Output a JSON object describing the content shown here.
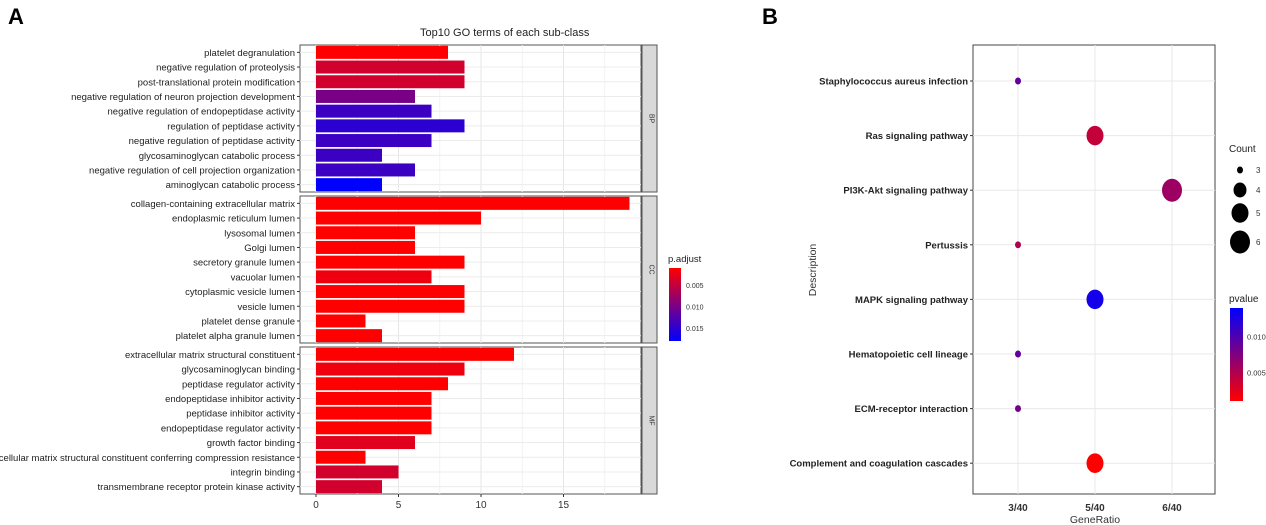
{
  "panel_labels": {
    "a": "A",
    "b": "B"
  },
  "chart_data": [
    {
      "type": "bar",
      "orientation": "horizontal",
      "title": "Top10 GO terms of each sub-class",
      "xlim": [
        0,
        19.5
      ],
      "x_ticks": [
        "0",
        "5",
        "10",
        "15"
      ],
      "grid": true,
      "color_legend": {
        "title": "p.adjust",
        "ticks": [
          "0.005",
          "0.010",
          "0.015"
        ],
        "low_color": "#ff0000",
        "high_color": "#0000ff",
        "range": [
          0.001,
          0.018
        ]
      },
      "facets": [
        {
          "strip": "BP",
          "categories": [
            "platelet degranulation",
            "negative regulation of proteolysis",
            "post-translational protein modification",
            "negative regulation of neuron projection development",
            "negative regulation of endopeptidase activity",
            "regulation of peptidase activity",
            "negative regulation of peptidase activity",
            "glycosaminoglycan catabolic process",
            "negative regulation of cell projection organization",
            "aminoglycan catabolic process"
          ],
          "values": [
            8,
            9,
            9,
            6,
            7,
            9,
            7,
            4,
            6,
            4
          ],
          "p_adjust": [
            0.001,
            0.004,
            0.004,
            0.01,
            0.014,
            0.015,
            0.014,
            0.014,
            0.014,
            0.018
          ]
        },
        {
          "strip": "CC",
          "categories": [
            "collagen-containing extracellular matrix",
            "endoplasmic reticulum lumen",
            "lysosomal lumen",
            "Golgi lumen",
            "secretory granule lumen",
            "vacuolar lumen",
            "cytoplasmic vesicle lumen",
            "vesicle lumen",
            "platelet dense granule",
            "platelet alpha granule lumen"
          ],
          "values": [
            19,
            10,
            6,
            6,
            9,
            7,
            9,
            9,
            3,
            4
          ],
          "p_adjust": [
            0.001,
            0.001,
            0.001,
            0.001,
            0.001,
            0.002,
            0.001,
            0.001,
            0.001,
            0.001
          ]
        },
        {
          "strip": "MF",
          "categories": [
            "extracellular matrix structural constituent",
            "glycosaminoglycan binding",
            "peptidase regulator activity",
            "endopeptidase inhibitor activity",
            "peptidase inhibitor activity",
            "endopeptidase regulator activity",
            "growth factor binding",
            "extracellular matrix structural constituent conferring compression resistance",
            "integrin binding",
            "transmembrane receptor protein kinase activity"
          ],
          "values": [
            12,
            9,
            8,
            7,
            7,
            7,
            6,
            3,
            5,
            4
          ],
          "p_adjust": [
            0.001,
            0.002,
            0.001,
            0.001,
            0.001,
            0.001,
            0.003,
            0.001,
            0.004,
            0.004
          ]
        }
      ]
    },
    {
      "type": "scatter",
      "xlabel": "GeneRatio",
      "ylabel": "Description",
      "x_categories": [
        "3/40",
        "5/40",
        "6/40"
      ],
      "grid": true,
      "categories": [
        "Staphylococcus aureus infection",
        "Ras signaling pathway",
        "PI3K-Akt signaling pathway",
        "Pertussis",
        "MAPK signaling pathway",
        "Hematopoietic cell lineage",
        "ECM-receptor interaction",
        "Complement and coagulation cascades"
      ],
      "x": [
        "3/40",
        "5/40",
        "6/40",
        "3/40",
        "5/40",
        "3/40",
        "3/40",
        "5/40"
      ],
      "count": [
        3,
        5,
        6,
        3,
        5,
        3,
        3,
        5
      ],
      "pvalue": [
        0.009,
        0.004,
        0.006,
        0.005,
        0.013,
        0.009,
        0.008,
        0.001
      ],
      "size_legend": {
        "title": "Count",
        "values": [
          "3",
          "4",
          "5",
          "6"
        ]
      },
      "color_legend": {
        "title": "pvalue",
        "ticks": [
          "0.010",
          "0.005"
        ],
        "low_color": "#ff0000",
        "high_color": "#0000ff",
        "range": [
          0.001,
          0.014
        ]
      }
    }
  ]
}
